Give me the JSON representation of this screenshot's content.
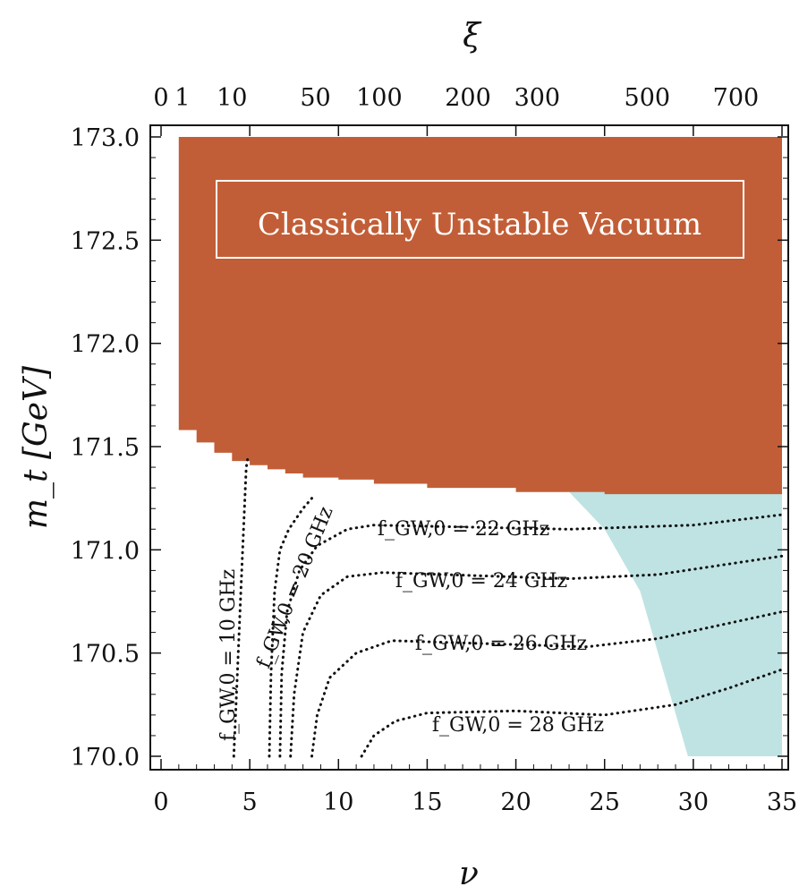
{
  "chart_data": {
    "type": "contour",
    "xlabel": "ν",
    "ylabel": "m_t [GeV]",
    "top_axis_label": "ξ",
    "xlim": [
      0,
      35
    ],
    "ylim": [
      170.0,
      173.0
    ],
    "x_ticks": [
      "0",
      "5",
      "10",
      "15",
      "20",
      "25",
      "30",
      "35"
    ],
    "y_ticks": [
      "170.0",
      "170.5",
      "171.0",
      "171.5",
      "172.0",
      "172.5",
      "173.0"
    ],
    "top_ticks": [
      {
        "label": "0",
        "nu": 0.0
      },
      {
        "label": "1",
        "nu": 1.2
      },
      {
        "label": "10",
        "nu": 4.0
      },
      {
        "label": "50",
        "nu": 8.7
      },
      {
        "label": "100",
        "nu": 12.3
      },
      {
        "label": "200",
        "nu": 17.3
      },
      {
        "label": "300",
        "nu": 21.2
      },
      {
        "label": "500",
        "nu": 27.4
      },
      {
        "label": "700",
        "nu": 32.4
      }
    ],
    "regions": [
      {
        "name": "unstable",
        "label": "Classically Unstable Vacuum",
        "color": "#c25e37",
        "top": 173.0,
        "boundary": [
          [
            1.0,
            171.62
          ],
          [
            2.0,
            171.58
          ],
          [
            3.0,
            171.52
          ],
          [
            4.0,
            171.47
          ],
          [
            5.0,
            171.43
          ],
          [
            6.0,
            171.41
          ],
          [
            7.0,
            171.39
          ],
          [
            8.0,
            171.37
          ],
          [
            10.0,
            171.35
          ],
          [
            12.0,
            171.34
          ],
          [
            15.0,
            171.32
          ],
          [
            20.0,
            171.3
          ],
          [
            25.0,
            171.28
          ],
          [
            30.0,
            171.27
          ],
          [
            35.0,
            171.27
          ]
        ]
      },
      {
        "name": "excluded",
        "label": "",
        "color": "#bfe3e3",
        "polygon": [
          [
            23.0,
            171.28
          ],
          [
            35.0,
            171.28
          ],
          [
            35.0,
            170.0
          ],
          [
            29.7,
            170.0
          ],
          [
            27.0,
            170.8
          ],
          [
            25.0,
            171.1
          ]
        ]
      }
    ],
    "contours": [
      {
        "label": "f_GW,0 = 10 GHz",
        "points": [
          [
            4.1,
            170.0
          ],
          [
            4.3,
            170.4
          ],
          [
            4.5,
            170.8
          ],
          [
            4.65,
            171.1
          ],
          [
            4.8,
            171.4
          ],
          [
            4.9,
            171.45
          ]
        ]
      },
      {
        "label": "f_GW,0 = 20 GHz",
        "points": [
          [
            6.1,
            170.0
          ],
          [
            6.2,
            170.4
          ],
          [
            6.4,
            170.8
          ],
          [
            6.7,
            171.0
          ],
          [
            7.2,
            171.1
          ],
          [
            8.0,
            171.2
          ],
          [
            8.5,
            171.25
          ]
        ]
      },
      {
        "label": "f_GW,0 = 22 GHz",
        "points": [
          [
            6.7,
            170.0
          ],
          [
            6.8,
            170.4
          ],
          [
            7.1,
            170.7
          ],
          [
            7.8,
            170.9
          ],
          [
            8.8,
            171.02
          ],
          [
            10.5,
            171.1
          ],
          [
            12.0,
            171.12
          ],
          [
            23.0,
            171.1
          ],
          [
            30.0,
            171.12
          ],
          [
            35.0,
            171.17
          ]
        ]
      },
      {
        "label": "f_GW,0 = 24 GHz",
        "points": [
          [
            7.3,
            170.0
          ],
          [
            7.5,
            170.3
          ],
          [
            8.0,
            170.6
          ],
          [
            9.0,
            170.78
          ],
          [
            10.5,
            170.87
          ],
          [
            12.5,
            170.89
          ],
          [
            23.0,
            170.86
          ],
          [
            28.0,
            170.88
          ],
          [
            35.0,
            170.97
          ]
        ]
      },
      {
        "label": "f_GW,0 = 26 GHz",
        "points": [
          [
            8.5,
            170.0
          ],
          [
            8.8,
            170.2
          ],
          [
            9.5,
            170.38
          ],
          [
            11.0,
            170.5
          ],
          [
            13.0,
            170.56
          ],
          [
            24.0,
            170.53
          ],
          [
            28.0,
            170.57
          ],
          [
            35.0,
            170.7
          ]
        ]
      },
      {
        "label": "f_GW,0 = 28 GHz",
        "points": [
          [
            11.3,
            170.0
          ],
          [
            12.0,
            170.1
          ],
          [
            13.2,
            170.17
          ],
          [
            15.0,
            170.21
          ],
          [
            20.0,
            170.22
          ],
          [
            25.0,
            170.2
          ],
          [
            29.0,
            170.25
          ],
          [
            32.0,
            170.33
          ],
          [
            35.0,
            170.42
          ]
        ]
      }
    ],
    "grid": false,
    "legend": "none"
  }
}
